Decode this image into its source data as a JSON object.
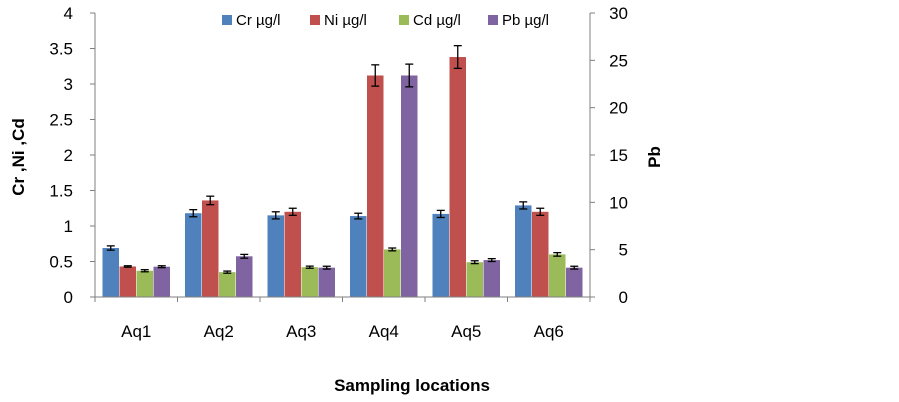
{
  "chart_data": {
    "type": "bar",
    "title": "",
    "xlabel": "Sampling locations",
    "ylabel_left": "Cr ,Ni ,Cd",
    "ylabel_right": "Pb",
    "categories": [
      "Aq1",
      "Aq2",
      "Aq3",
      "Aq4",
      "Aq5",
      "Aq6"
    ],
    "y_left": {
      "min": 0,
      "max": 4,
      "step": 0.5,
      "ticks": [
        "0",
        "0.5",
        "1",
        "1.5",
        "2",
        "2.5",
        "3",
        "3.5",
        "4"
      ]
    },
    "y_right": {
      "min": 0,
      "max": 30,
      "step": 5,
      "ticks": [
        "0",
        "5",
        "10",
        "15",
        "20",
        "25",
        "30"
      ]
    },
    "grid": false,
    "legend_position": "top",
    "series": [
      {
        "name": "Cr µg/l",
        "axis": "left",
        "color": "#4f81bd",
        "values": [
          0.69,
          1.18,
          1.15,
          1.14,
          1.17,
          1.29
        ],
        "errors": [
          0.03,
          0.05,
          0.05,
          0.04,
          0.05,
          0.05
        ]
      },
      {
        "name": "Ni µg/l",
        "axis": "left",
        "color": "#c0504d",
        "values": [
          0.43,
          1.36,
          1.2,
          3.12,
          3.38,
          1.2
        ],
        "errors": [
          0.01,
          0.06,
          0.05,
          0.15,
          0.16,
          0.05
        ]
      },
      {
        "name": "Cd µg/l",
        "axis": "left",
        "color": "#9bbb59",
        "values": [
          0.37,
          0.35,
          0.42,
          0.67,
          0.49,
          0.6
        ],
        "errors": [
          0.015,
          0.015,
          0.015,
          0.02,
          0.02,
          0.025
        ]
      },
      {
        "name": "Pb µg/l",
        "axis": "right",
        "color": "#8064a2",
        "values": [
          3.2,
          4.3,
          3.1,
          23.4,
          3.9,
          3.1
        ],
        "errors": [
          0.1,
          0.2,
          0.15,
          1.2,
          0.15,
          0.15
        ]
      }
    ]
  }
}
